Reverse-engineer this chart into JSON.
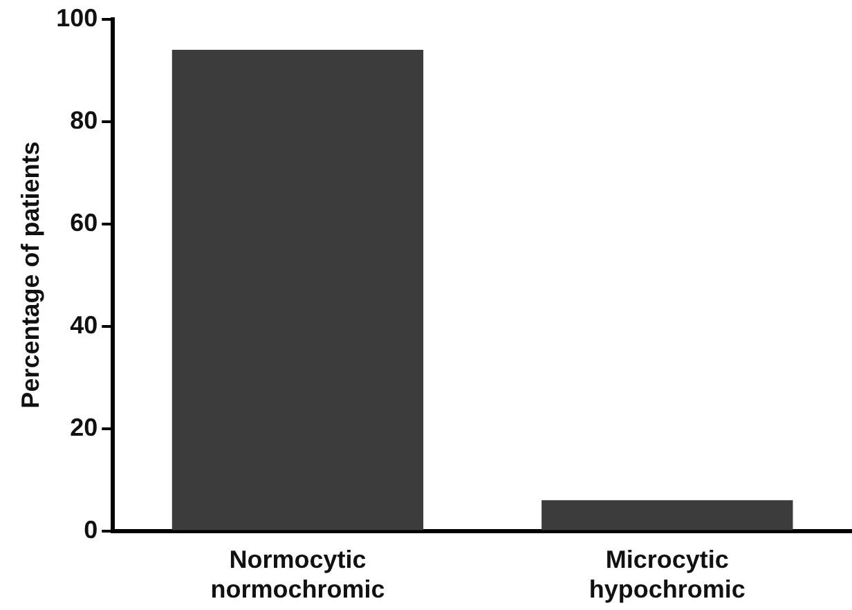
{
  "chart_data": {
    "type": "bar",
    "ylabel": "Percentage of patients",
    "categories": [
      "Normocytic normochromic",
      "Microcytic hypochromic"
    ],
    "values": [
      94,
      6
    ],
    "color": "#3c3c3c",
    "ylim": [
      0,
      100
    ],
    "yticks": [
      0,
      20,
      40,
      60,
      80,
      100
    ],
    "grid": false,
    "legend": false
  }
}
